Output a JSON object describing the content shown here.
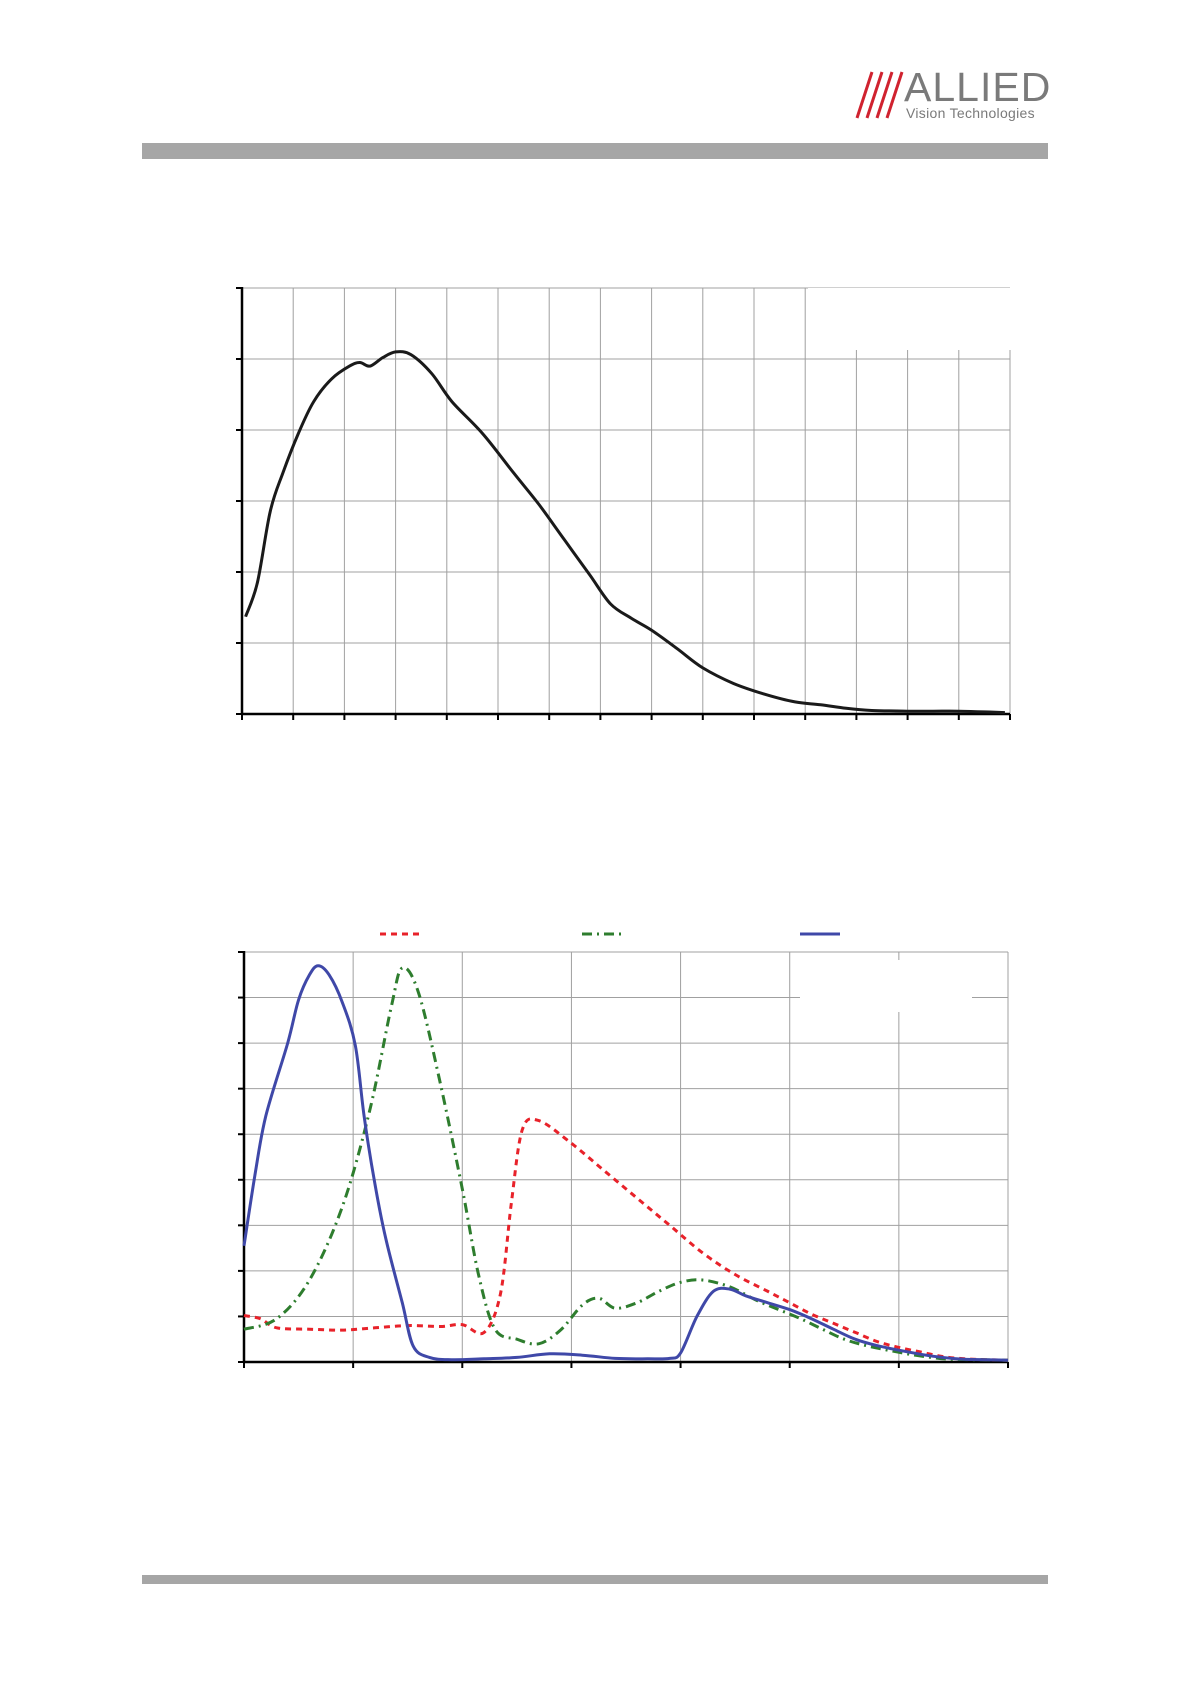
{
  "logo": {
    "brand": "ALLIED",
    "subtitle": "Vision Technologies",
    "colors": {
      "slashes": "#d0222f",
      "text": "#7a7a7a"
    }
  },
  "colors": {
    "rule": "#a6a6a6",
    "grid": "#a0a0a0",
    "axis": "#000000",
    "luminance": "#1a1a1a",
    "red": "#e8222a",
    "green": "#2e7d2e",
    "blue": "#3f48a8"
  },
  "chart_data": [
    {
      "type": "line",
      "title": "",
      "xlabel": "",
      "ylabel": "",
      "grid": true,
      "xlim": [
        0,
        15
      ],
      "ylim": [
        0,
        6
      ],
      "x_ticks": 15,
      "y_ticks": 6,
      "series": [
        {
          "color": "#1a1a1a",
          "dash": "",
          "points": [
            [
              0.07,
              1.37
            ],
            [
              0.3,
              1.85
            ],
            [
              0.55,
              2.85
            ],
            [
              0.8,
              3.4
            ],
            [
              1.1,
              3.95
            ],
            [
              1.4,
              4.4
            ],
            [
              1.75,
              4.72
            ],
            [
              2.1,
              4.9
            ],
            [
              2.3,
              4.95
            ],
            [
              2.5,
              4.9
            ],
            [
              2.75,
              5.02
            ],
            [
              3.0,
              5.1
            ],
            [
              3.3,
              5.06
            ],
            [
              3.7,
              4.8
            ],
            [
              4.1,
              4.4
            ],
            [
              4.7,
              3.95
            ],
            [
              5.3,
              3.4
            ],
            [
              5.8,
              2.95
            ],
            [
              6.3,
              2.45
            ],
            [
              6.8,
              1.95
            ],
            [
              7.2,
              1.55
            ],
            [
              7.6,
              1.35
            ],
            [
              8.0,
              1.18
            ],
            [
              8.5,
              0.92
            ],
            [
              9.0,
              0.65
            ],
            [
              9.6,
              0.43
            ],
            [
              10.2,
              0.28
            ],
            [
              10.8,
              0.17
            ],
            [
              11.3,
              0.13
            ],
            [
              11.8,
              0.08
            ],
            [
              12.3,
              0.05
            ],
            [
              13.0,
              0.04
            ],
            [
              13.5,
              0.04
            ],
            [
              14.0,
              0.04
            ],
            [
              14.5,
              0.03
            ],
            [
              14.9,
              0.02
            ]
          ]
        }
      ]
    },
    {
      "type": "line",
      "title": "",
      "xlabel": "",
      "ylabel": "",
      "grid": true,
      "xlim": [
        0,
        7
      ],
      "ylim": [
        0,
        9
      ],
      "x_ticks": 7,
      "y_ticks": 9,
      "legend": {
        "position": "top"
      },
      "series": [
        {
          "color": "#e8222a",
          "dash": "6,5",
          "points": [
            [
              0.0,
              1.02
            ],
            [
              0.15,
              0.95
            ],
            [
              0.3,
              0.75
            ],
            [
              0.6,
              0.72
            ],
            [
              0.9,
              0.7
            ],
            [
              1.2,
              0.75
            ],
            [
              1.5,
              0.8
            ],
            [
              1.8,
              0.78
            ],
            [
              2.0,
              0.82
            ],
            [
              2.2,
              0.65
            ],
            [
              2.35,
              1.5
            ],
            [
              2.45,
              3.5
            ],
            [
              2.55,
              5.1
            ],
            [
              2.7,
              5.3
            ],
            [
              3.0,
              4.8
            ],
            [
              3.3,
              4.2
            ],
            [
              3.6,
              3.6
            ],
            [
              3.9,
              3.0
            ],
            [
              4.2,
              2.4
            ],
            [
              4.5,
              1.92
            ],
            [
              4.8,
              1.55
            ],
            [
              5.0,
              1.3
            ],
            [
              5.2,
              1.05
            ],
            [
              5.4,
              0.85
            ],
            [
              5.6,
              0.65
            ],
            [
              5.8,
              0.45
            ],
            [
              6.0,
              0.32
            ],
            [
              6.2,
              0.22
            ],
            [
              6.4,
              0.12
            ],
            [
              6.6,
              0.07
            ],
            [
              6.8,
              0.05
            ],
            [
              7.0,
              0.04
            ]
          ]
        },
        {
          "color": "#2e7d2e",
          "dash": "10,5,2,5",
          "points": [
            [
              0.0,
              0.72
            ],
            [
              0.3,
              0.95
            ],
            [
              0.6,
              1.8
            ],
            [
              0.9,
              3.4
            ],
            [
              1.15,
              5.5
            ],
            [
              1.35,
              7.8
            ],
            [
              1.45,
              8.65
            ],
            [
              1.6,
              8.1
            ],
            [
              1.8,
              6.1
            ],
            [
              2.0,
              3.8
            ],
            [
              2.15,
              1.9
            ],
            [
              2.3,
              0.72
            ],
            [
              2.5,
              0.5
            ],
            [
              2.7,
              0.4
            ],
            [
              2.9,
              0.7
            ],
            [
              3.1,
              1.25
            ],
            [
              3.25,
              1.4
            ],
            [
              3.4,
              1.18
            ],
            [
              3.6,
              1.3
            ],
            [
              3.8,
              1.55
            ],
            [
              4.0,
              1.75
            ],
            [
              4.2,
              1.8
            ],
            [
              4.45,
              1.65
            ],
            [
              4.7,
              1.35
            ],
            [
              4.9,
              1.15
            ],
            [
              5.1,
              0.95
            ],
            [
              5.3,
              0.72
            ],
            [
              5.5,
              0.5
            ],
            [
              5.7,
              0.36
            ],
            [
              5.9,
              0.26
            ],
            [
              6.1,
              0.17
            ],
            [
              6.3,
              0.1
            ],
            [
              6.5,
              0.06
            ],
            [
              7.0,
              0.04
            ]
          ]
        },
        {
          "color": "#3f48a8",
          "dash": "",
          "points": [
            [
              0.0,
              2.55
            ],
            [
              0.1,
              4.1
            ],
            [
              0.2,
              5.4
            ],
            [
              0.4,
              7.0
            ],
            [
              0.5,
              7.95
            ],
            [
              0.6,
              8.5
            ],
            [
              0.68,
              8.7
            ],
            [
              0.78,
              8.5
            ],
            [
              0.9,
              7.9
            ],
            [
              1.02,
              6.95
            ],
            [
              1.1,
              5.4
            ],
            [
              1.2,
              3.9
            ],
            [
              1.3,
              2.7
            ],
            [
              1.45,
              1.3
            ],
            [
              1.55,
              0.35
            ],
            [
              1.7,
              0.1
            ],
            [
              1.9,
              0.05
            ],
            [
              2.2,
              0.07
            ],
            [
              2.5,
              0.1
            ],
            [
              2.8,
              0.18
            ],
            [
              3.1,
              0.15
            ],
            [
              3.4,
              0.08
            ],
            [
              3.7,
              0.07
            ],
            [
              3.9,
              0.08
            ],
            [
              4.0,
              0.2
            ],
            [
              4.15,
              1.0
            ],
            [
              4.3,
              1.55
            ],
            [
              4.45,
              1.6
            ],
            [
              4.6,
              1.45
            ],
            [
              4.8,
              1.3
            ],
            [
              5.0,
              1.15
            ],
            [
              5.2,
              0.95
            ],
            [
              5.4,
              0.72
            ],
            [
              5.6,
              0.5
            ],
            [
              5.8,
              0.36
            ],
            [
              6.0,
              0.26
            ],
            [
              6.2,
              0.17
            ],
            [
              6.4,
              0.1
            ],
            [
              6.6,
              0.06
            ],
            [
              7.0,
              0.04
            ]
          ]
        }
      ]
    }
  ]
}
